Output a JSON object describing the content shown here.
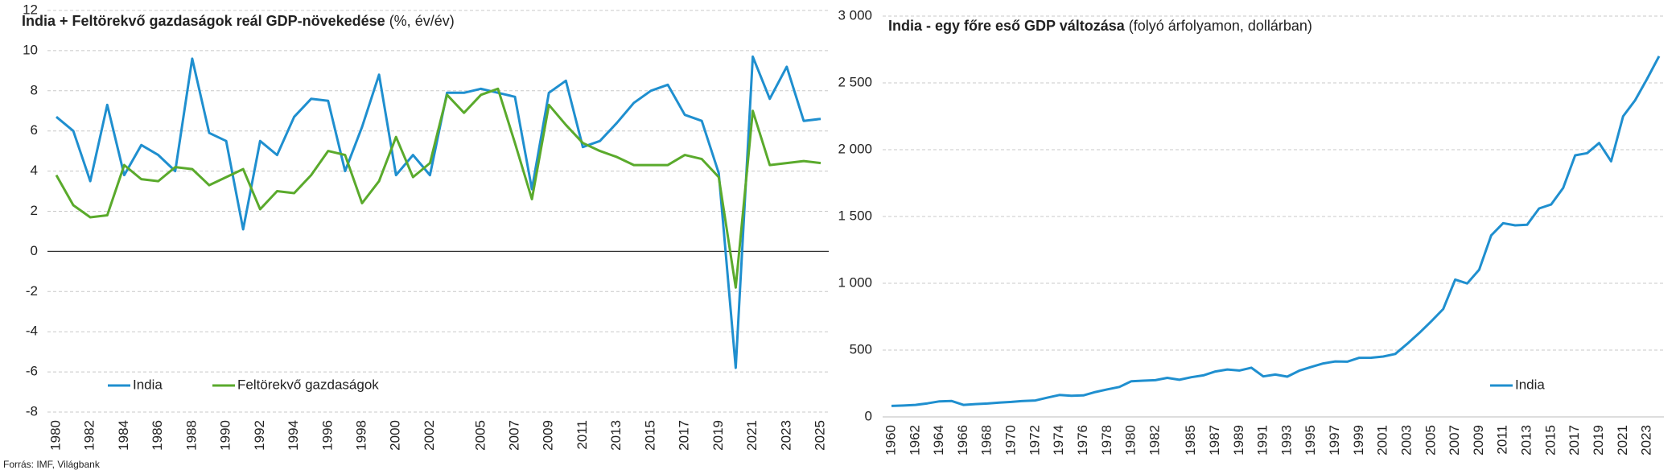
{
  "chart_data": [
    {
      "type": "line",
      "title": "India + Feltörekvő gazdaságok  reál GDP-növekedése",
      "subtitle": "(%, év/év)",
      "categories": [
        "1980",
        null,
        "1982",
        null,
        "1984",
        null,
        "1986",
        null,
        "1988",
        null,
        "1990",
        null,
        "1992",
        null,
        "1994",
        null,
        "1996",
        null,
        "1998",
        null,
        "2000",
        null,
        "2002",
        null,
        null,
        "2005",
        null,
        "2007",
        null,
        "2009",
        null,
        "2011",
        null,
        "2013",
        null,
        "2015",
        null,
        "2017",
        null,
        "2019",
        null,
        "2021",
        null,
        "2023",
        null,
        "2025"
      ],
      "series": [
        {
          "name": "India",
          "color": "#1f8fcf",
          "values": [
            6.7,
            6.0,
            3.5,
            7.3,
            3.8,
            5.3,
            4.8,
            4.0,
            9.6,
            5.9,
            5.5,
            1.1,
            5.5,
            4.8,
            6.7,
            7.6,
            7.5,
            4.0,
            6.2,
            8.8,
            3.8,
            4.8,
            3.8,
            7.9,
            7.9,
            8.1,
            7.9,
            7.7,
            3.1,
            7.9,
            8.5,
            5.2,
            5.5,
            6.4,
            7.4,
            8.0,
            8.3,
            6.8,
            6.5,
            3.9,
            -5.8,
            9.7,
            7.6,
            9.2,
            6.5,
            6.6
          ]
        },
        {
          "name": "Feltörekvő gazdaságok",
          "color": "#5aaa2c",
          "values": [
            3.8,
            2.3,
            1.7,
            1.8,
            4.3,
            3.6,
            3.5,
            4.2,
            4.1,
            3.3,
            3.7,
            4.1,
            2.1,
            3.0,
            2.9,
            3.8,
            5.0,
            4.8,
            2.4,
            3.5,
            5.7,
            3.7,
            4.4,
            7.8,
            6.9,
            7.8,
            8.1,
            5.4,
            2.6,
            7.3,
            6.3,
            5.4,
            5.0,
            4.7,
            4.3,
            4.3,
            4.3,
            4.8,
            4.6,
            3.7,
            -1.8,
            7.0,
            4.3,
            4.4,
            4.5,
            4.4
          ]
        }
      ],
      "ylim": [
        -8,
        12
      ],
      "yticks": [
        -8,
        -6,
        -4,
        -2,
        0,
        2,
        4,
        6,
        8,
        10,
        12
      ],
      "grid": true,
      "legend": "bottom-left",
      "source": "Forrás: IMF, Világbank"
    },
    {
      "type": "line",
      "title": "India - egy főre eső GDP változása",
      "subtitle": "(folyó árfolyamon, dollárban)",
      "categories": [
        "1960",
        null,
        "1962",
        null,
        "1964",
        null,
        "1966",
        null,
        "1968",
        null,
        "1970",
        null,
        "1972",
        null,
        "1974",
        null,
        "1976",
        null,
        "1978",
        null,
        "1980",
        null,
        "1982",
        null,
        null,
        "1985",
        null,
        "1987",
        null,
        "1989",
        null,
        "1991",
        null,
        "1993",
        null,
        "1995",
        null,
        "1997",
        null,
        "1999",
        null,
        "2001",
        null,
        "2003",
        null,
        "2005",
        null,
        "2007",
        null,
        "2009",
        null,
        "2011",
        null,
        "2013",
        null,
        "2015",
        null,
        "2017",
        null,
        "2019",
        null,
        "2021",
        null,
        "2023",
        null
      ],
      "series": [
        {
          "name": "India",
          "color": "#1f8fcf",
          "values": [
            82,
            85,
            90,
            101,
            116,
            119,
            90,
            96,
            100,
            107,
            112,
            119,
            123,
            144,
            164,
            158,
            161,
            186,
            206,
            224,
            267,
            271,
            275,
            292,
            278,
            297,
            311,
            340,
            355,
            347,
            368,
            303,
            317,
            301,
            346,
            374,
            400,
            415,
            413,
            442,
            443,
            452,
            471,
            547,
            628,
            715,
            807,
            1028,
            999,
            1102,
            1358,
            1450,
            1434,
            1438,
            1560,
            1590,
            1714,
            1958,
            1974,
            2050,
            1913,
            2250,
            2370,
            2530,
            2700
          ]
        }
      ],
      "ylim": [
        0,
        3000
      ],
      "yticks": [
        0,
        500,
        {
          "value": 1000,
          "label": "1 000"
        },
        {
          "value": 1500,
          "label": "1 500"
        },
        {
          "value": 2000,
          "label": "2 000"
        },
        {
          "value": 2500,
          "label": "2 500"
        },
        {
          "value": 3000,
          "label": "3 000"
        }
      ],
      "grid": true,
      "legend": "bottom-right"
    }
  ]
}
